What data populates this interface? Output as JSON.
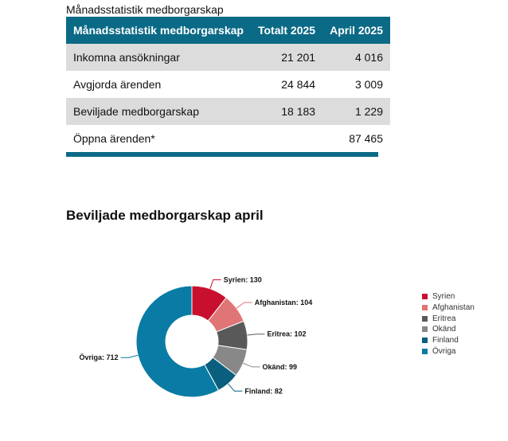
{
  "table": {
    "caption": "Månadsstatistik medborgarskap",
    "headers": [
      "Månadsstatistik medborgarskap",
      "Totalt 2025",
      "April 2025"
    ],
    "rows": [
      {
        "label": "Inkomna ansökningar",
        "total": "21 201",
        "april": "4 016"
      },
      {
        "label": "Avgjorda ärenden",
        "total": "24 844",
        "april": "3 009"
      },
      {
        "label": "Beviljade medborgarskap",
        "total": "18 183",
        "april": "1 229"
      },
      {
        "label": "Öppna ärenden*",
        "total": "",
        "april": "87 465"
      }
    ]
  },
  "chart_data": {
    "type": "pie",
    "title": "Beviljade medborgarskap april",
    "categories": [
      "Syrien",
      "Afghanistan",
      "Eritrea",
      "Okänd",
      "Finland",
      "Övriga"
    ],
    "values": [
      130,
      104,
      102,
      99,
      82,
      712
    ],
    "colors": [
      "#c8102e",
      "#e07575",
      "#595959",
      "#888888",
      "#0a5f7f",
      "#0a7ba4"
    ],
    "donut": true,
    "legend_position": "right"
  }
}
